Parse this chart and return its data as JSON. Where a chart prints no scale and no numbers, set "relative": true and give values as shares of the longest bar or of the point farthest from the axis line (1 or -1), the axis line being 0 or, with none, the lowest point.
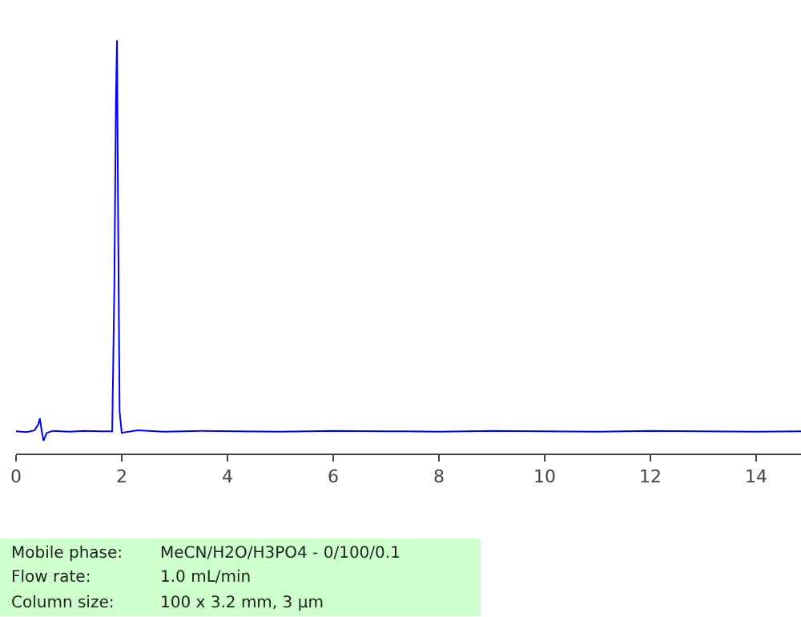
{
  "chart_data": {
    "type": "line",
    "relative": true,
    "x": [
      0,
      0.2,
      0.35,
      0.42,
      0.45,
      0.48,
      0.52,
      0.58,
      0.7,
      1.0,
      1.3,
      1.6,
      1.82,
      1.86,
      1.89,
      1.91,
      1.93,
      1.96,
      2.0,
      2.3,
      2.8,
      3.5,
      4.2,
      5.0,
      6.0,
      7.0,
      8.0,
      9.0,
      10.0,
      11.0,
      12.0,
      13.0,
      14.0,
      14.85
    ],
    "values": [
      0.054,
      0.052,
      0.056,
      0.07,
      0.085,
      0.06,
      0.031,
      0.05,
      0.055,
      0.053,
      0.055,
      0.054,
      0.054,
      0.4,
      0.85,
      1.0,
      0.6,
      0.1,
      0.05,
      0.056,
      0.053,
      0.055,
      0.054,
      0.053,
      0.055,
      0.054,
      0.053,
      0.055,
      0.054,
      0.053,
      0.055,
      0.054,
      0.053,
      0.054
    ],
    "color": "#0000ff",
    "xlim": [
      0,
      14.85
    ],
    "xticks": [
      0,
      2,
      4,
      6,
      8,
      10,
      12,
      14
    ],
    "marker": "none",
    "line_style": "solid",
    "annotations": [
      "Mobile phase:",
      "MeCN/H2O/H3PO4 - 0/100/0.1",
      "Flow rate:",
      "1.0 mL/min",
      "Column size:",
      "100 x 3.2 mm, 3 µm"
    ]
  }
}
